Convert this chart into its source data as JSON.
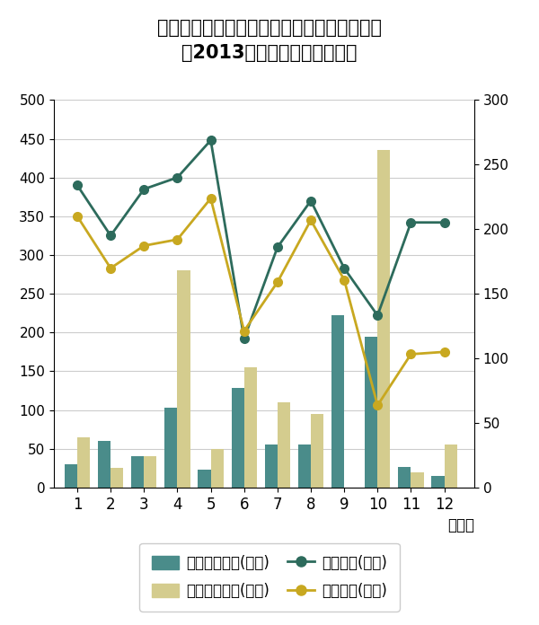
{
  "title_line1": "北杜市大泉の月別平均降水量と平均日照時間",
  "title_line2": "（2013年データ気象庁調べ）",
  "months": [
    1,
    2,
    3,
    4,
    5,
    6,
    7,
    8,
    9,
    10,
    11,
    12
  ],
  "precip_oizumi": [
    30,
    60,
    40,
    103,
    23,
    128,
    55,
    55,
    222,
    195,
    27,
    15
  ],
  "precip_tokyo": [
    65,
    25,
    40,
    280,
    50,
    155,
    110,
    95,
    0,
    435,
    20,
    55
  ],
  "sunshine_oizumi": [
    390,
    325,
    385,
    400,
    448,
    192,
    310,
    370,
    283,
    222,
    342,
    342
  ],
  "sunshine_tokyo": [
    350,
    283,
    312,
    320,
    373,
    202,
    265,
    345,
    268,
    106,
    172,
    175
  ],
  "bar_color_oizumi": "#4a8c8a",
  "bar_color_tokyo": "#d4cc8e",
  "line_color_oizumi": "#2d6b5c",
  "line_color_tokyo": "#c8a820",
  "ylim_left": [
    0,
    500
  ],
  "ylim_right": [
    0,
    300
  ],
  "background_color": "#ffffff",
  "grid_color": "#cccccc",
  "legend_labels": [
    "降水量の合計(大泉)",
    "降水量の合計(東京)",
    "日照時間(大泉)",
    "日照時間(東京)"
  ],
  "xlabel": "（月）",
  "yticks_left": [
    0,
    50,
    100,
    150,
    200,
    250,
    300,
    350,
    400,
    450,
    500
  ],
  "yticks_right": [
    0,
    50,
    100,
    150,
    200,
    250,
    300
  ]
}
